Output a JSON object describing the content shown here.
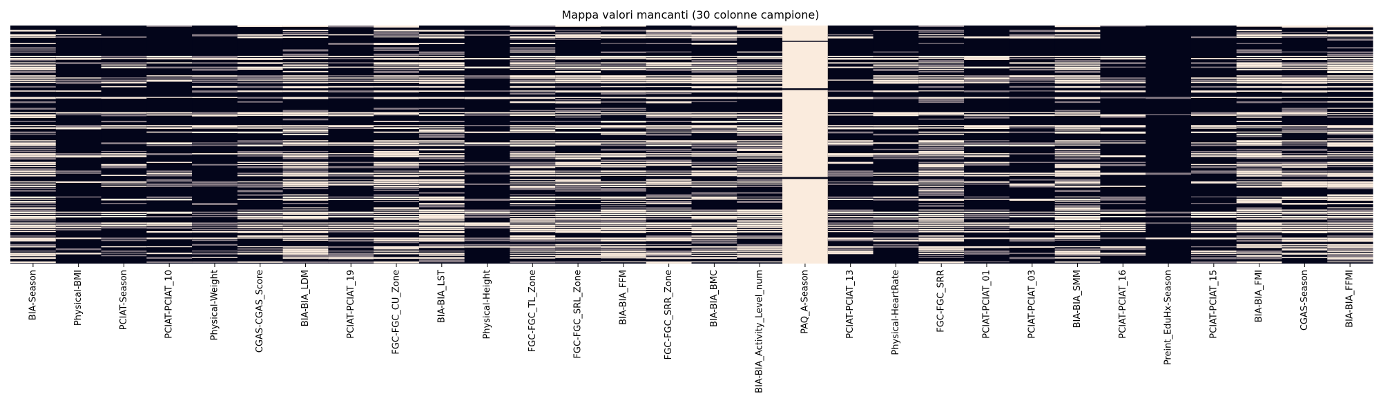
{
  "chart_data": {
    "type": "heatmap",
    "title": "Mappa valori mancanti (30 colonne campione)",
    "xlabel": "",
    "ylabel": "",
    "legend": "none",
    "grid": false,
    "colors": {
      "missing": "#faebdd",
      "present": "#03051a",
      "partial": "#8a7f88"
    },
    "columns": [
      "BIA-Season",
      "Physical-BMI",
      "PCIAT-Season",
      "PCIAT-PCIAT_10",
      "Physical-Weight",
      "CGAS-CGAS_Score",
      "BIA-BIA_LDM",
      "PCIAT-PCIAT_19",
      "FGC-FGC_CU_Zone",
      "BIA-BIA_LST",
      "Physical-Height",
      "FGC-FGC_TL_Zone",
      "FGC-FGC_SRL_Zone",
      "BIA-BIA_FFM",
      "FGC-FGC_SRR_Zone",
      "BIA-BIA_BMC",
      "BIA-BIA_Activity_Level_num",
      "PAQ_A-Season",
      "PCIAT-PCIAT_13",
      "Physical-HeartRate",
      "FGC-FGC_SRR",
      "PCIAT-PCIAT_01",
      "PCIAT-PCIAT_03",
      "BIA-BIA_SMM",
      "PCIAT-PCIAT_16",
      "Preint_EduHx-Season",
      "PCIAT-PCIAT_15",
      "BIA-BIA_FMI",
      "CGAS-Season",
      "BIA-BIA_FFMI"
    ],
    "missing_fraction": [
      0.5,
      0.25,
      0.3,
      0.3,
      0.25,
      0.4,
      0.5,
      0.3,
      0.5,
      0.5,
      0.25,
      0.5,
      0.5,
      0.5,
      0.5,
      0.5,
      0.5,
      0.9,
      0.3,
      0.35,
      0.5,
      0.3,
      0.3,
      0.5,
      0.3,
      0.05,
      0.3,
      0.5,
      0.4,
      0.5
    ]
  }
}
